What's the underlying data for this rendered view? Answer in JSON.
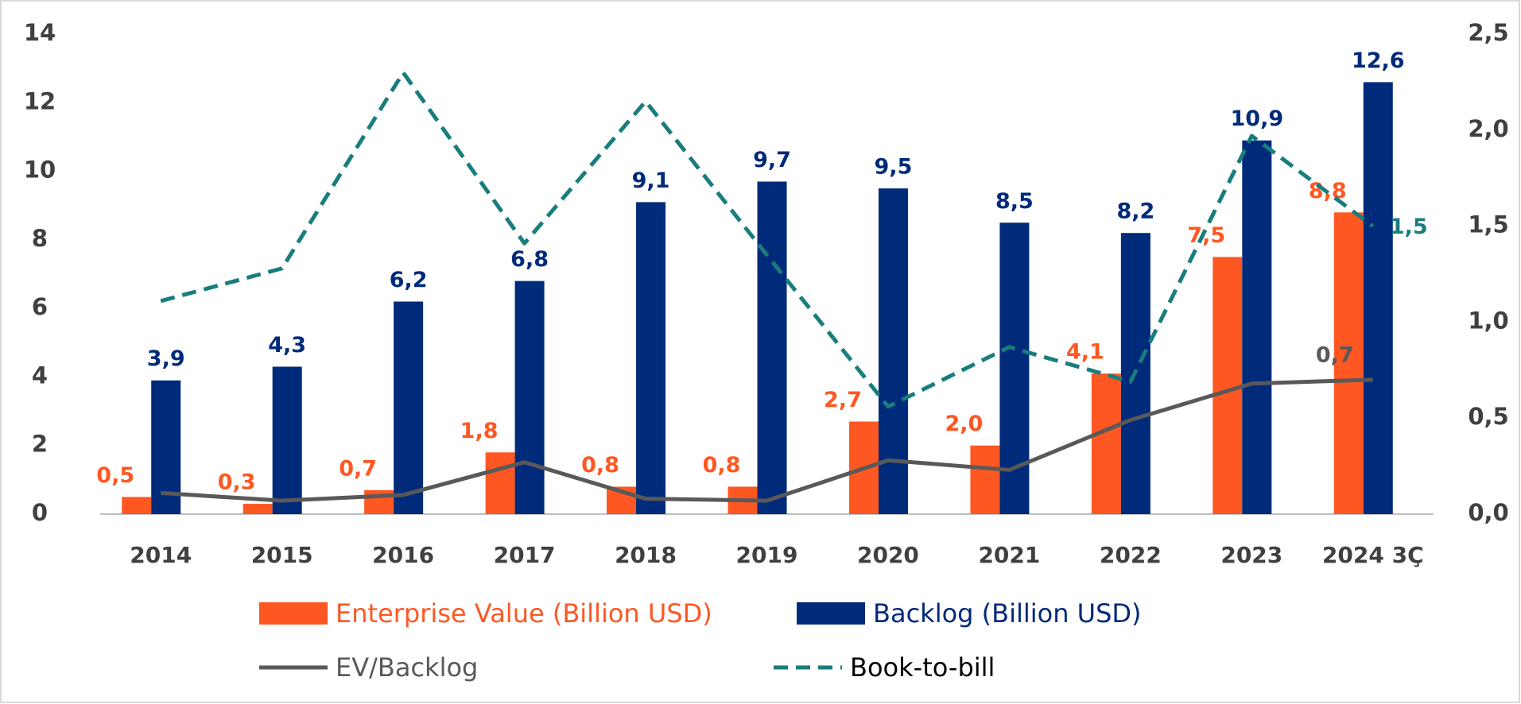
{
  "chart_data": {
    "type": "bar-line",
    "categories": [
      "2014",
      "2015",
      "2016",
      "2017",
      "2018",
      "2019",
      "2020",
      "2021",
      "2022",
      "2023",
      "2024 3Ç"
    ],
    "series": [
      {
        "name": "Enterprise Value (Billion USD)",
        "type": "bar",
        "color": "#fe5722",
        "values": [
          0.5,
          0.3,
          0.7,
          1.8,
          0.8,
          0.8,
          2.7,
          2.0,
          4.1,
          7.5,
          8.8
        ],
        "value_labels": [
          "0,5",
          "0,3",
          "0,7",
          "1,8",
          "0,8",
          "0,8",
          "2,7",
          "2,0",
          "4,1",
          "7,5",
          "8,8"
        ]
      },
      {
        "name": "Backlog (Billion USD)",
        "type": "bar",
        "color": "#002a7a",
        "values": [
          3.9,
          4.3,
          6.2,
          6.8,
          9.1,
          9.7,
          9.5,
          8.5,
          8.2,
          10.9,
          12.6
        ],
        "value_labels": [
          "3,9",
          "4,3",
          "6,2",
          "6,8",
          "9,1",
          "9,7",
          "9,5",
          "8,5",
          "8,2",
          "10,9",
          "12,6"
        ]
      },
      {
        "name": "EV/Backlog",
        "type": "line",
        "axis": "y2",
        "color": "#595959",
        "dash": false,
        "values": [
          0.11,
          0.07,
          0.1,
          0.27,
          0.08,
          0.07,
          0.28,
          0.23,
          0.49,
          0.68,
          0.7
        ],
        "value_labels": [
          null,
          null,
          null,
          null,
          null,
          null,
          null,
          null,
          null,
          null,
          "0,7"
        ]
      },
      {
        "name": "Book-to-bill",
        "type": "line",
        "axis": "y2",
        "color": "#1a7d7d",
        "dash": true,
        "values": [
          1.11,
          1.28,
          2.3,
          1.41,
          2.15,
          1.35,
          0.56,
          0.87,
          0.69,
          1.97,
          1.5
        ],
        "value_labels": [
          null,
          null,
          null,
          null,
          null,
          null,
          null,
          null,
          null,
          null,
          "1,5"
        ]
      }
    ],
    "ylim": [
      0,
      14
    ],
    "yticks": [
      0,
      2,
      4,
      6,
      8,
      10,
      12,
      14
    ],
    "y2lim": [
      0,
      2.5
    ],
    "y2ticks": [
      {
        "value": 0,
        "label": "0,0"
      },
      {
        "value": 0.5,
        "label": "0,5"
      },
      {
        "value": 1,
        "label": "1,0"
      },
      {
        "value": 1.5,
        "label": "1,5"
      },
      {
        "value": 2,
        "label": "2,0"
      },
      {
        "value": 2.5,
        "label": "2,5"
      }
    ]
  }
}
